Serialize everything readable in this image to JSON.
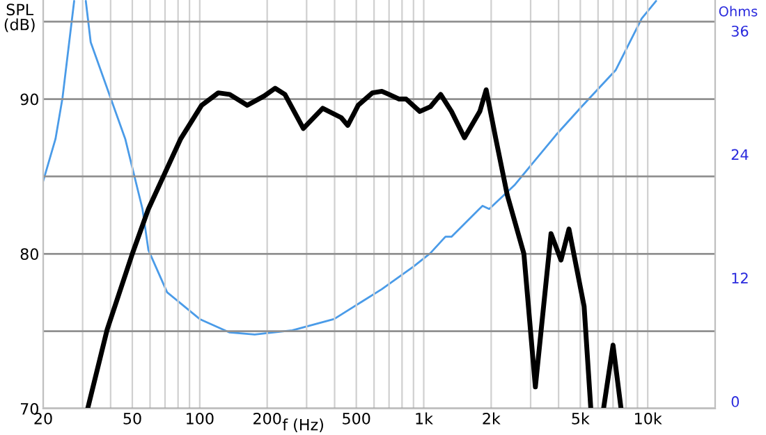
{
  "chart_data": {
    "type": "line",
    "xlabel": "f (Hz)",
    "ylabel": "SPL\n(dB)",
    "y2label": "Ohms",
    "log": "x",
    "grid": true,
    "xlim": [
      20,
      20000
    ],
    "ylim": [
      70,
      96.4
    ],
    "y2lim": [
      -0.7,
      39
    ],
    "xticks": [
      20,
      {
        "value": 30,
        "label": null
      },
      {
        "value": 40,
        "label": null
      },
      50,
      {
        "value": 60,
        "label": null
      },
      {
        "value": 70,
        "label": null
      },
      {
        "value": 80,
        "label": null
      },
      {
        "value": 90,
        "label": null
      },
      100,
      200,
      {
        "value": 300,
        "label": null
      },
      {
        "value": 400,
        "label": null
      },
      500,
      {
        "value": 600,
        "label": null
      },
      {
        "value": 700,
        "label": null
      },
      {
        "value": 800,
        "label": null
      },
      {
        "value": 900,
        "label": null
      },
      {
        "value": 1000,
        "label": "1k"
      },
      {
        "value": 2000,
        "label": "2k"
      },
      {
        "value": 3000,
        "label": null
      },
      {
        "value": 4000,
        "label": null
      },
      {
        "value": 5000,
        "label": "5k"
      },
      {
        "value": 6000,
        "label": null
      },
      {
        "value": 7000,
        "label": null
      },
      {
        "value": 8000,
        "label": null
      },
      {
        "value": 9000,
        "label": null
      },
      {
        "value": 10000,
        "label": "10k"
      },
      {
        "value": 20000,
        "label": null
      }
    ],
    "yticks": [
      70,
      {
        "value": 75,
        "label": null
      },
      80,
      {
        "value": 85,
        "label": null
      },
      90,
      {
        "value": 95,
        "label": null
      }
    ],
    "y2ticks": [
      0,
      12,
      24,
      36
    ],
    "series": [
      {
        "color": "#000000",
        "x": [
          31.6,
          38.6,
          50,
          59,
          82,
          102,
          121,
          136,
          163,
          194,
          217,
          240,
          290,
          354,
          428,
          458,
          510,
          590,
          650,
          700,
          777,
          834,
          960,
          1070,
          1190,
          1330,
          1520,
          1780,
          1900,
          2100,
          2360,
          2800,
          3150,
          3700,
          4100,
          4450,
          5200,
          5570,
          6000,
          6350,
          7000,
          7600
        ],
        "values": [
          70,
          75.1,
          80,
          82.9,
          87.4,
          89.6,
          90.4,
          90.3,
          89.6,
          90.2,
          90.7,
          90.3,
          88.1,
          89.4,
          88.8,
          88.3,
          89.6,
          90.4,
          90.5,
          90.3,
          90,
          90,
          89.2,
          89.5,
          90.3,
          89.2,
          87.5,
          89.2,
          90.6,
          87.4,
          83.8,
          80,
          71.4,
          81.3,
          79.6,
          81.6,
          76.6,
          70,
          null,
          70,
          74.1,
          70
        ]
      },
      {
        "color": "#4a9be8",
        "axis": "y2",
        "x": [
          20,
          22.7,
          24.4,
          27.5,
          29,
          31,
          32.6,
          46.5,
          55.5,
          59,
          71.5,
          100,
          136,
          176,
          259,
          398,
          530,
          650,
          900,
          1070,
          1250,
          1330,
          1770,
          1830,
          1960,
          2540,
          3900,
          5050,
          7200,
          9400,
          10900
        ],
        "values": [
          21.4,
          25.5,
          29.5,
          38.9,
          null,
          38.9,
          34.9,
          25.5,
          18.7,
          14.7,
          10.6,
          8.0,
          6.7,
          6.5,
          6.9,
          8.0,
          9.7,
          10.9,
          13.1,
          14.4,
          16.0,
          16.0,
          18.7,
          19.0,
          18.7,
          21.0,
          25.9,
          28.6,
          32.2,
          37.2,
          38.9
        ]
      }
    ]
  }
}
